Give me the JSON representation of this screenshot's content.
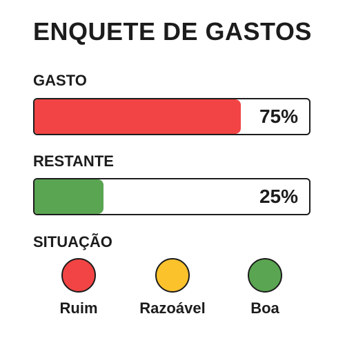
{
  "title": "ENQUETE DE GASTOS",
  "spending": {
    "label": "GASTO",
    "percent_text": "75%",
    "value": 0.75,
    "color": "#f24444"
  },
  "remaining": {
    "label": "RESTANTE",
    "percent_text": "25%",
    "value": 0.25,
    "color": "#5aa552"
  },
  "situation": {
    "label": "SITUAÇÃO",
    "options": [
      {
        "label": "Ruim",
        "color": "#f24444"
      },
      {
        "label": "Razoável",
        "color": "#fbc22c"
      },
      {
        "label": "Boa",
        "color": "#5aa552"
      }
    ]
  }
}
